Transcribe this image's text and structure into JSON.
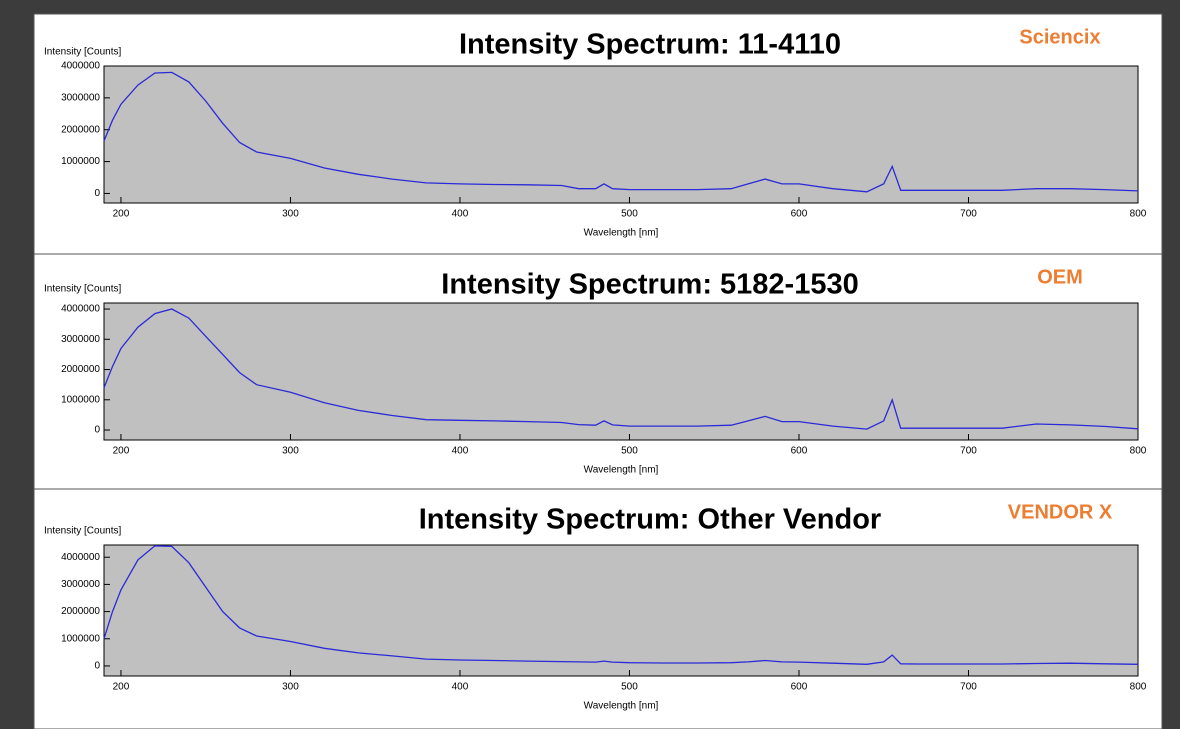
{
  "chart_data": [
    {
      "type": "line",
      "title": "Intensity Spectrum: 11-4110",
      "annotation": "Sciencix",
      "y_label": "Intensity [Counts]",
      "x_label": "Wavelength [nm]",
      "xlim": [
        190,
        800
      ],
      "xticks": [
        200,
        300,
        400,
        500,
        600,
        700,
        800
      ],
      "ylim": [
        -300000,
        4000000
      ],
      "yticks": [
        0,
        1000000,
        2000000,
        3000000,
        4000000
      ],
      "x": [
        190,
        195,
        200,
        210,
        220,
        230,
        240,
        250,
        260,
        270,
        280,
        300,
        320,
        340,
        360,
        380,
        400,
        420,
        440,
        460,
        470,
        480,
        485,
        490,
        500,
        520,
        540,
        560,
        570,
        580,
        590,
        600,
        620,
        640,
        650,
        655,
        660,
        670,
        700,
        720,
        740,
        760,
        780,
        800
      ],
      "series": [
        {
          "color": "#2a2ad8",
          "values": [
            1650000,
            2300000,
            2800000,
            3400000,
            3780000,
            3800000,
            3500000,
            2900000,
            2200000,
            1600000,
            1300000,
            1100000,
            800000,
            600000,
            450000,
            330000,
            300000,
            280000,
            270000,
            250000,
            150000,
            150000,
            300000,
            150000,
            120000,
            120000,
            120000,
            150000,
            300000,
            450000,
            300000,
            300000,
            150000,
            50000,
            300000,
            850000,
            100000,
            100000,
            100000,
            100000,
            150000,
            150000,
            120000,
            80000
          ]
        }
      ]
    },
    {
      "type": "line",
      "title": "Intensity Spectrum: 5182-1530",
      "annotation": "OEM",
      "y_label": "Intensity [Counts]",
      "x_label": "Wavelength [nm]",
      "xlim": [
        190,
        800
      ],
      "xticks": [
        200,
        300,
        400,
        500,
        600,
        700,
        800
      ],
      "ylim": [
        -330000,
        4200000
      ],
      "yticks": [
        0,
        1000000,
        2000000,
        3000000,
        4000000
      ],
      "x": [
        190,
        195,
        200,
        210,
        220,
        230,
        240,
        250,
        260,
        270,
        280,
        300,
        320,
        340,
        360,
        380,
        400,
        420,
        440,
        460,
        470,
        480,
        485,
        490,
        500,
        520,
        540,
        560,
        570,
        580,
        590,
        600,
        620,
        640,
        650,
        655,
        660,
        670,
        700,
        720,
        740,
        760,
        780,
        800
      ],
      "series": [
        {
          "color": "#2a2ad8",
          "values": [
            1400000,
            2100000,
            2700000,
            3400000,
            3850000,
            4000000,
            3700000,
            3100000,
            2500000,
            1900000,
            1500000,
            1250000,
            900000,
            650000,
            480000,
            340000,
            320000,
            300000,
            280000,
            250000,
            180000,
            160000,
            300000,
            170000,
            130000,
            130000,
            130000,
            160000,
            300000,
            450000,
            280000,
            280000,
            130000,
            30000,
            300000,
            1000000,
            60000,
            60000,
            60000,
            60000,
            200000,
            170000,
            120000,
            40000
          ]
        }
      ]
    },
    {
      "type": "line",
      "title": "Intensity Spectrum: Other Vendor",
      "annotation": "VENDOR X",
      "y_label": "Intensity [Counts]",
      "x_label": "Wavelength [nm]",
      "xlim": [
        190,
        800
      ],
      "xticks": [
        200,
        300,
        400,
        500,
        600,
        700,
        800
      ],
      "ylim": [
        -370000,
        4450000
      ],
      "yticks": [
        0,
        1000000,
        2000000,
        3000000,
        4000000
      ],
      "x": [
        190,
        195,
        200,
        210,
        220,
        230,
        240,
        250,
        260,
        270,
        280,
        300,
        320,
        340,
        360,
        380,
        400,
        420,
        440,
        460,
        470,
        480,
        485,
        490,
        500,
        520,
        540,
        560,
        570,
        580,
        590,
        600,
        620,
        640,
        650,
        655,
        660,
        670,
        700,
        720,
        740,
        760,
        780,
        800
      ],
      "series": [
        {
          "color": "#2a2ad8",
          "values": [
            1000000,
            2000000,
            2800000,
            3900000,
            4420000,
            4400000,
            3800000,
            2900000,
            2000000,
            1400000,
            1100000,
            900000,
            650000,
            480000,
            370000,
            250000,
            220000,
            200000,
            180000,
            160000,
            150000,
            140000,
            180000,
            140000,
            120000,
            110000,
            110000,
            120000,
            150000,
            200000,
            150000,
            140000,
            100000,
            60000,
            150000,
            400000,
            80000,
            70000,
            70000,
            70000,
            90000,
            100000,
            80000,
            60000
          ]
        }
      ]
    }
  ]
}
